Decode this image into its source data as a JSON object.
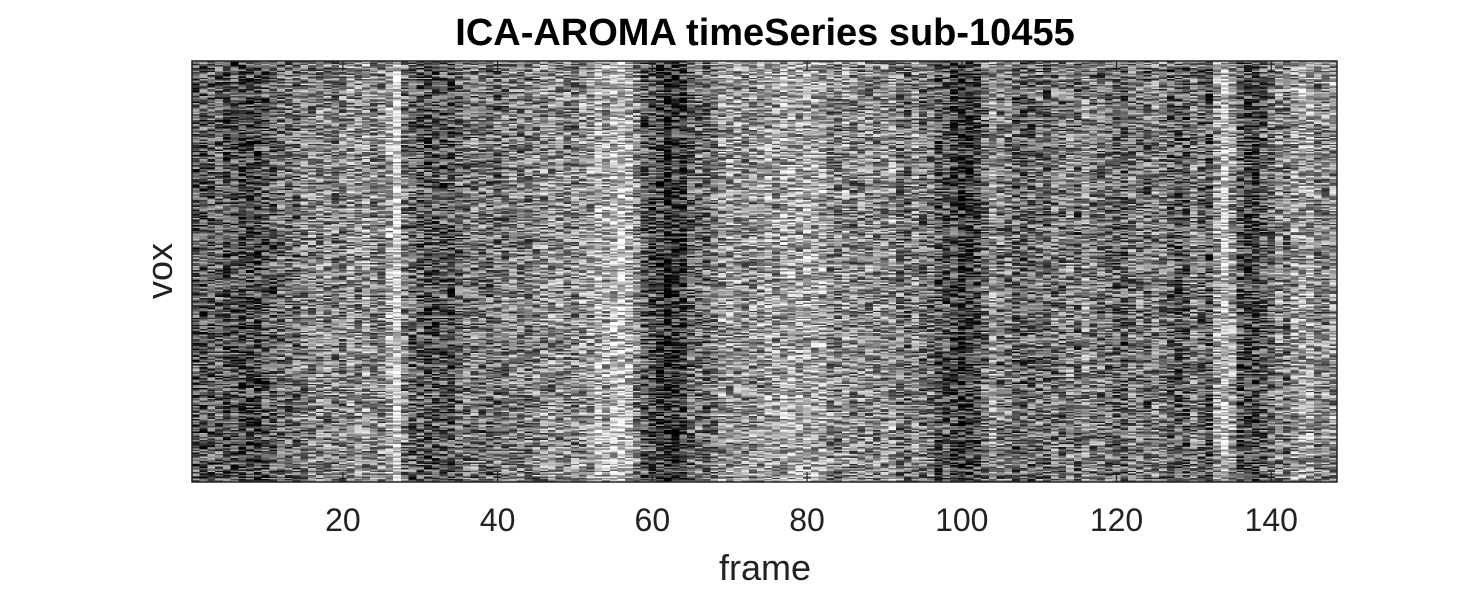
{
  "chart_data": {
    "type": "heatmap",
    "title": "ICA-AROMA timeSeries sub-10455",
    "xlabel": "frame",
    "ylabel": "vox",
    "colormap": "gray",
    "x_range": [
      1,
      148
    ],
    "xlim": [
      0.5,
      148.5
    ],
    "x_ticks": [
      20,
      40,
      60,
      80,
      100,
      120,
      140
    ],
    "y_ticks": [],
    "grid": false,
    "column_intensity_profile": {
      "description_frames": [
        1,
        3,
        5,
        8,
        10,
        12,
        14,
        16,
        18,
        20,
        22,
        24,
        26,
        27,
        28,
        30,
        32,
        34,
        36,
        38,
        40,
        42,
        44,
        46,
        48,
        50,
        52,
        54,
        55,
        56,
        58,
        60,
        62,
        64,
        66,
        68,
        70,
        72,
        74,
        76,
        78,
        80,
        82,
        84,
        86,
        88,
        90,
        92,
        94,
        96,
        98,
        100,
        102,
        104,
        106,
        108,
        110,
        112,
        114,
        116,
        118,
        120,
        122,
        124,
        126,
        128,
        130,
        132,
        134,
        136,
        138,
        140,
        142,
        144,
        146,
        148
      ],
      "mean_level": [
        0.35,
        0.38,
        0.34,
        0.3,
        0.32,
        0.4,
        0.42,
        0.55,
        0.5,
        0.48,
        0.58,
        0.5,
        0.62,
        0.88,
        0.45,
        0.4,
        0.38,
        0.3,
        0.44,
        0.46,
        0.5,
        0.55,
        0.48,
        0.5,
        0.52,
        0.55,
        0.62,
        0.66,
        0.7,
        0.78,
        0.55,
        0.28,
        0.22,
        0.26,
        0.42,
        0.5,
        0.55,
        0.52,
        0.56,
        0.58,
        0.6,
        0.62,
        0.58,
        0.55,
        0.5,
        0.52,
        0.54,
        0.5,
        0.48,
        0.42,
        0.3,
        0.24,
        0.3,
        0.55,
        0.45,
        0.42,
        0.44,
        0.48,
        0.46,
        0.5,
        0.44,
        0.4,
        0.42,
        0.45,
        0.5,
        0.38,
        0.44,
        0.35,
        0.78,
        0.3,
        0.26,
        0.45,
        0.5,
        0.68,
        0.5,
        0.62
      ]
    }
  }
}
